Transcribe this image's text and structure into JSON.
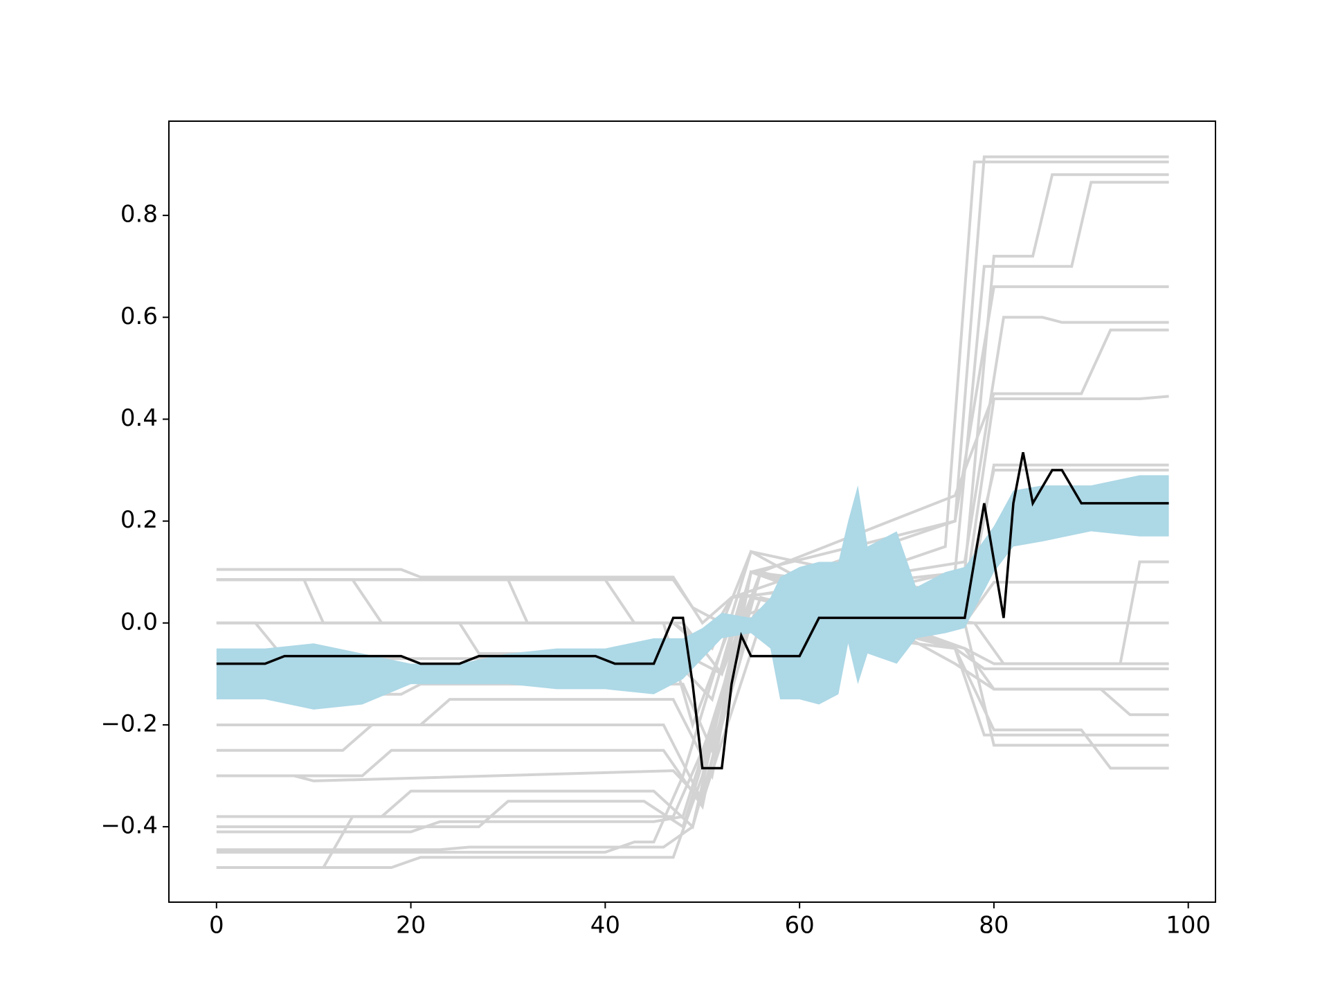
{
  "chart_data": {
    "type": "line",
    "xlim": [
      -4.9,
      102.8
    ],
    "ylim": [
      -0.548,
      0.985
    ],
    "xticks": [
      0,
      20,
      40,
      60,
      80,
      100
    ],
    "yticks": [
      {
        "value": -0.4,
        "label": "−0.4"
      },
      {
        "value": -0.2,
        "label": "−0.2"
      },
      {
        "value": 0,
        "label": "0.0"
      },
      0.2,
      0.4,
      0.6,
      0.8
    ],
    "band": {
      "color": "#add8e6",
      "x": [
        0,
        5,
        10,
        15,
        20,
        25,
        30,
        35,
        40,
        45,
        48,
        50,
        52,
        55,
        57,
        58,
        60,
        62,
        64,
        65,
        66,
        67,
        70,
        72,
        75,
        77,
        80,
        82,
        85,
        90,
        95,
        98
      ],
      "upper": [
        -0.05,
        -0.05,
        -0.04,
        -0.06,
        -0.08,
        -0.08,
        -0.06,
        -0.05,
        -0.05,
        -0.03,
        -0.03,
        -0.01,
        0.02,
        0.01,
        0.05,
        0.09,
        0.11,
        0.12,
        0.12,
        0.2,
        0.27,
        0.15,
        0.18,
        0.07,
        0.1,
        0.11,
        0.19,
        0.26,
        0.27,
        0.27,
        0.29,
        0.29
      ],
      "lower": [
        -0.15,
        -0.15,
        -0.17,
        -0.16,
        -0.12,
        -0.12,
        -0.12,
        -0.13,
        -0.13,
        -0.14,
        -0.11,
        -0.07,
        -0.03,
        -0.02,
        -0.05,
        -0.15,
        -0.15,
        -0.16,
        -0.14,
        -0.04,
        -0.12,
        -0.06,
        -0.08,
        -0.03,
        -0.02,
        -0.01,
        0.1,
        0.15,
        0.16,
        0.18,
        0.17,
        0.17
      ]
    },
    "series": [
      {
        "color": "#d3d3d3",
        "x": [
          0,
          19,
          21,
          47,
          50,
          53,
          76,
          79,
          98
        ],
        "values": [
          0.105,
          0.105,
          0.09,
          0.09,
          0.0,
          0.05,
          0.2,
          0.915,
          0.915
        ]
      },
      {
        "color": "#d3d3d3",
        "x": [
          0,
          47,
          49,
          52,
          75,
          78,
          98
        ],
        "values": [
          0.085,
          0.085,
          0.03,
          0.0,
          0.15,
          0.905,
          0.905
        ]
      },
      {
        "color": "#d3d3d3",
        "x": [
          0,
          9,
          11,
          47,
          50,
          53,
          77,
          80,
          84,
          86,
          98
        ],
        "values": [
          0.085,
          0.085,
          0.0,
          0.0,
          -0.05,
          0.05,
          0.1,
          0.72,
          0.72,
          0.88,
          0.88
        ]
      },
      {
        "color": "#d3d3d3",
        "x": [
          0,
          14,
          17,
          46,
          49,
          53,
          76,
          79,
          88,
          90,
          98
        ],
        "values": [
          0.085,
          0.085,
          0.0,
          0.0,
          -0.2,
          0.0,
          0.1,
          0.7,
          0.7,
          0.865,
          0.865
        ]
      },
      {
        "color": "#d3d3d3",
        "x": [
          0,
          25,
          27,
          48,
          52,
          55,
          76,
          80,
          98
        ],
        "values": [
          0.0,
          0.0,
          -0.06,
          -0.06,
          -0.1,
          0.1,
          0.2,
          0.66,
          0.66
        ]
      },
      {
        "color": "#d3d3d3",
        "x": [
          0,
          4,
          7,
          47,
          51,
          54,
          77,
          81,
          85,
          87,
          98
        ],
        "values": [
          0.0,
          0.0,
          -0.07,
          -0.07,
          -0.15,
          0.05,
          0.12,
          0.6,
          0.6,
          0.59,
          0.59
        ]
      },
      {
        "color": "#d3d3d3",
        "x": [
          0,
          40,
          43,
          48,
          52,
          56,
          76,
          80,
          89,
          92,
          98
        ],
        "values": [
          0.085,
          0.085,
          0.0,
          0.0,
          -0.1,
          0.1,
          0.25,
          0.45,
          0.45,
          0.575,
          0.575
        ]
      },
      {
        "color": "#d3d3d3",
        "x": [
          0,
          30,
          32,
          47,
          51,
          55,
          77,
          80,
          95,
          98
        ],
        "values": [
          0.085,
          0.085,
          0.0,
          0.0,
          -0.05,
          0.14,
          0.05,
          0.44,
          0.44,
          0.445
        ]
      },
      {
        "color": "#d3d3d3",
        "x": [
          0,
          19,
          21,
          48,
          51,
          56,
          77,
          80,
          98
        ],
        "values": [
          -0.14,
          -0.14,
          -0.12,
          -0.12,
          -0.25,
          0.1,
          0.0,
          0.31,
          0.31
        ]
      },
      {
        "color": "#d3d3d3",
        "x": [
          0,
          21,
          24,
          47,
          51,
          55,
          77,
          80,
          98
        ],
        "values": [
          -0.2,
          -0.2,
          -0.15,
          -0.15,
          -0.3,
          0.1,
          0.05,
          0.3,
          0.3
        ]
      },
      {
        "color": "#d3d3d3",
        "x": [
          0,
          13,
          16,
          46,
          50,
          55,
          78,
          81,
          93,
          95,
          98
        ],
        "values": [
          -0.25,
          -0.25,
          -0.2,
          -0.2,
          -0.35,
          0.05,
          0.0,
          -0.08,
          -0.08,
          0.12,
          0.12
        ]
      },
      {
        "color": "#d3d3d3",
        "x": [
          0,
          8,
          10,
          47,
          50,
          56,
          77,
          80,
          98
        ],
        "values": [
          -0.3,
          -0.3,
          -0.31,
          -0.29,
          -0.35,
          0.0,
          0.0,
          0.08,
          0.08
        ]
      },
      {
        "color": "#d3d3d3",
        "x": [
          0,
          15,
          18,
          46,
          50,
          55,
          76,
          79,
          98
        ],
        "values": [
          -0.3,
          -0.3,
          -0.25,
          -0.25,
          -0.36,
          0.1,
          0.0,
          0.0,
          0.0
        ]
      },
      {
        "color": "#d3d3d3",
        "x": [
          0,
          17,
          20,
          45,
          49,
          55,
          77,
          80,
          98
        ],
        "values": [
          -0.38,
          -0.38,
          -0.33,
          -0.33,
          -0.4,
          0.1,
          -0.05,
          -0.08,
          -0.08
        ]
      },
      {
        "color": "#d3d3d3",
        "x": [
          0,
          27,
          30,
          44,
          48,
          56,
          76,
          79,
          98
        ],
        "values": [
          -0.4,
          -0.4,
          -0.35,
          -0.35,
          -0.4,
          0.1,
          -0.05,
          -0.09,
          -0.09
        ]
      },
      {
        "color": "#d3d3d3",
        "x": [
          0,
          20,
          23,
          45,
          48,
          55,
          77,
          80,
          91,
          94,
          98
        ],
        "values": [
          -0.41,
          -0.41,
          -0.39,
          -0.39,
          -0.38,
          0.05,
          -0.05,
          -0.13,
          -0.13,
          -0.13,
          -0.13
        ]
      },
      {
        "color": "#d3d3d3",
        "x": [
          0,
          40,
          43,
          45,
          48,
          55,
          76,
          80,
          91,
          94,
          98
        ],
        "values": [
          -0.45,
          -0.45,
          -0.43,
          -0.43,
          -0.3,
          0.14,
          -0.08,
          -0.13,
          -0.13,
          -0.18,
          -0.18
        ]
      },
      {
        "color": "#d3d3d3",
        "x": [
          0,
          23,
          26,
          46,
          49,
          55,
          76,
          79,
          98
        ],
        "values": [
          -0.445,
          -0.445,
          -0.44,
          -0.44,
          -0.4,
          0.0,
          -0.05,
          -0.22,
          -0.22
        ]
      },
      {
        "color": "#d3d3d3",
        "x": [
          0,
          18,
          21,
          47,
          50,
          55,
          77,
          80,
          98
        ],
        "values": [
          -0.48,
          -0.48,
          -0.46,
          -0.46,
          -0.3,
          0.1,
          0.0,
          -0.24,
          -0.24
        ]
      },
      {
        "color": "#d3d3d3",
        "x": [
          0,
          11,
          14,
          47,
          50,
          56,
          76,
          80,
          89,
          92,
          98
        ],
        "values": [
          -0.48,
          -0.48,
          -0.38,
          -0.38,
          -0.25,
          0.05,
          -0.05,
          -0.21,
          -0.21,
          -0.285,
          -0.285
        ]
      },
      {
        "color": "#000000",
        "x": [
          0,
          5,
          7,
          19,
          21,
          25,
          27,
          39,
          41,
          45,
          47,
          48,
          49,
          50,
          52,
          53,
          54,
          55,
          60,
          62,
          77,
          79,
          81,
          82,
          83,
          84,
          86,
          87,
          89,
          98
        ],
        "values": [
          -0.08,
          -0.08,
          -0.065,
          -0.065,
          -0.08,
          -0.08,
          -0.065,
          -0.065,
          -0.08,
          -0.08,
          0.01,
          0.01,
          -0.12,
          -0.285,
          -0.285,
          -0.12,
          -0.025,
          -0.065,
          -0.065,
          0.01,
          0.01,
          0.235,
          0.01,
          0.235,
          0.335,
          0.235,
          0.3,
          0.3,
          0.235,
          0.235
        ]
      }
    ]
  }
}
